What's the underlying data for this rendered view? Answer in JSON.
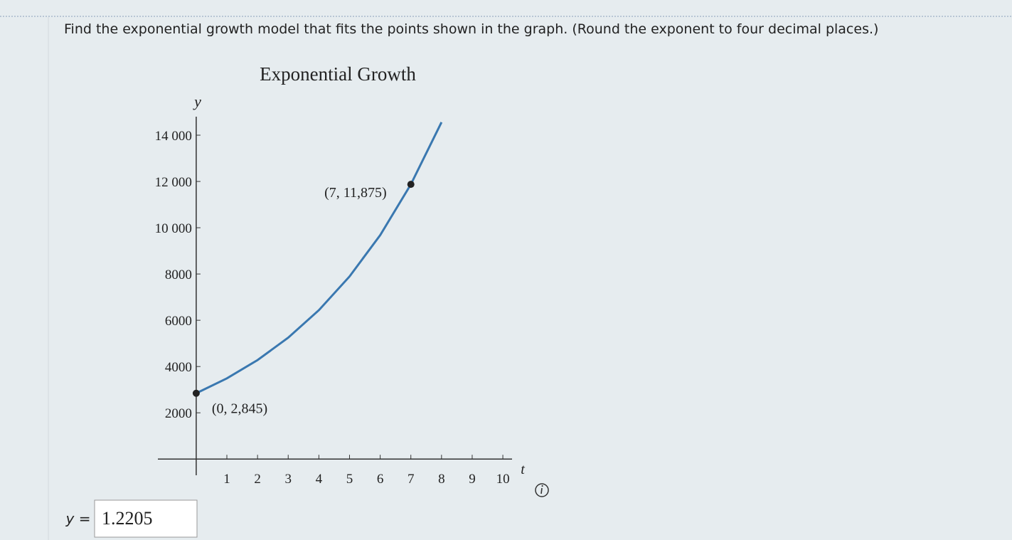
{
  "question": "Find the exponential growth model that fits the points shown in the graph. (Round the exponent to four decimal places.)",
  "chart_data": {
    "type": "line",
    "title": "Exponential Growth",
    "x_label": "t",
    "y_label": "y",
    "x": [
      0,
      1,
      2,
      3,
      4,
      5,
      6,
      7,
      8
    ],
    "series": [
      {
        "color": "#3a78b0",
        "values": [
          2845,
          3489,
          4279,
          5248,
          6436,
          7893,
          9680,
          11875,
          14560
        ]
      }
    ],
    "points": [
      {
        "x": 0,
        "y": 2845,
        "label": "(0, 2,845)"
      },
      {
        "x": 7,
        "y": 11875,
        "label": "(7, 11,875)"
      }
    ],
    "xlim": [
      -1.25,
      10.3
    ],
    "ylim": [
      -700,
      14800
    ],
    "xticks": [
      1,
      2,
      3,
      4,
      5,
      6,
      7,
      8,
      9,
      10
    ],
    "yticks": [
      2000,
      4000,
      6000,
      8000,
      {
        "value": 10000,
        "label": "10 000"
      },
      {
        "value": 12000,
        "label": "12 000"
      },
      {
        "value": 14000,
        "label": "14 000"
      }
    ]
  },
  "answer": {
    "label": "y =",
    "value": "1.2205"
  }
}
